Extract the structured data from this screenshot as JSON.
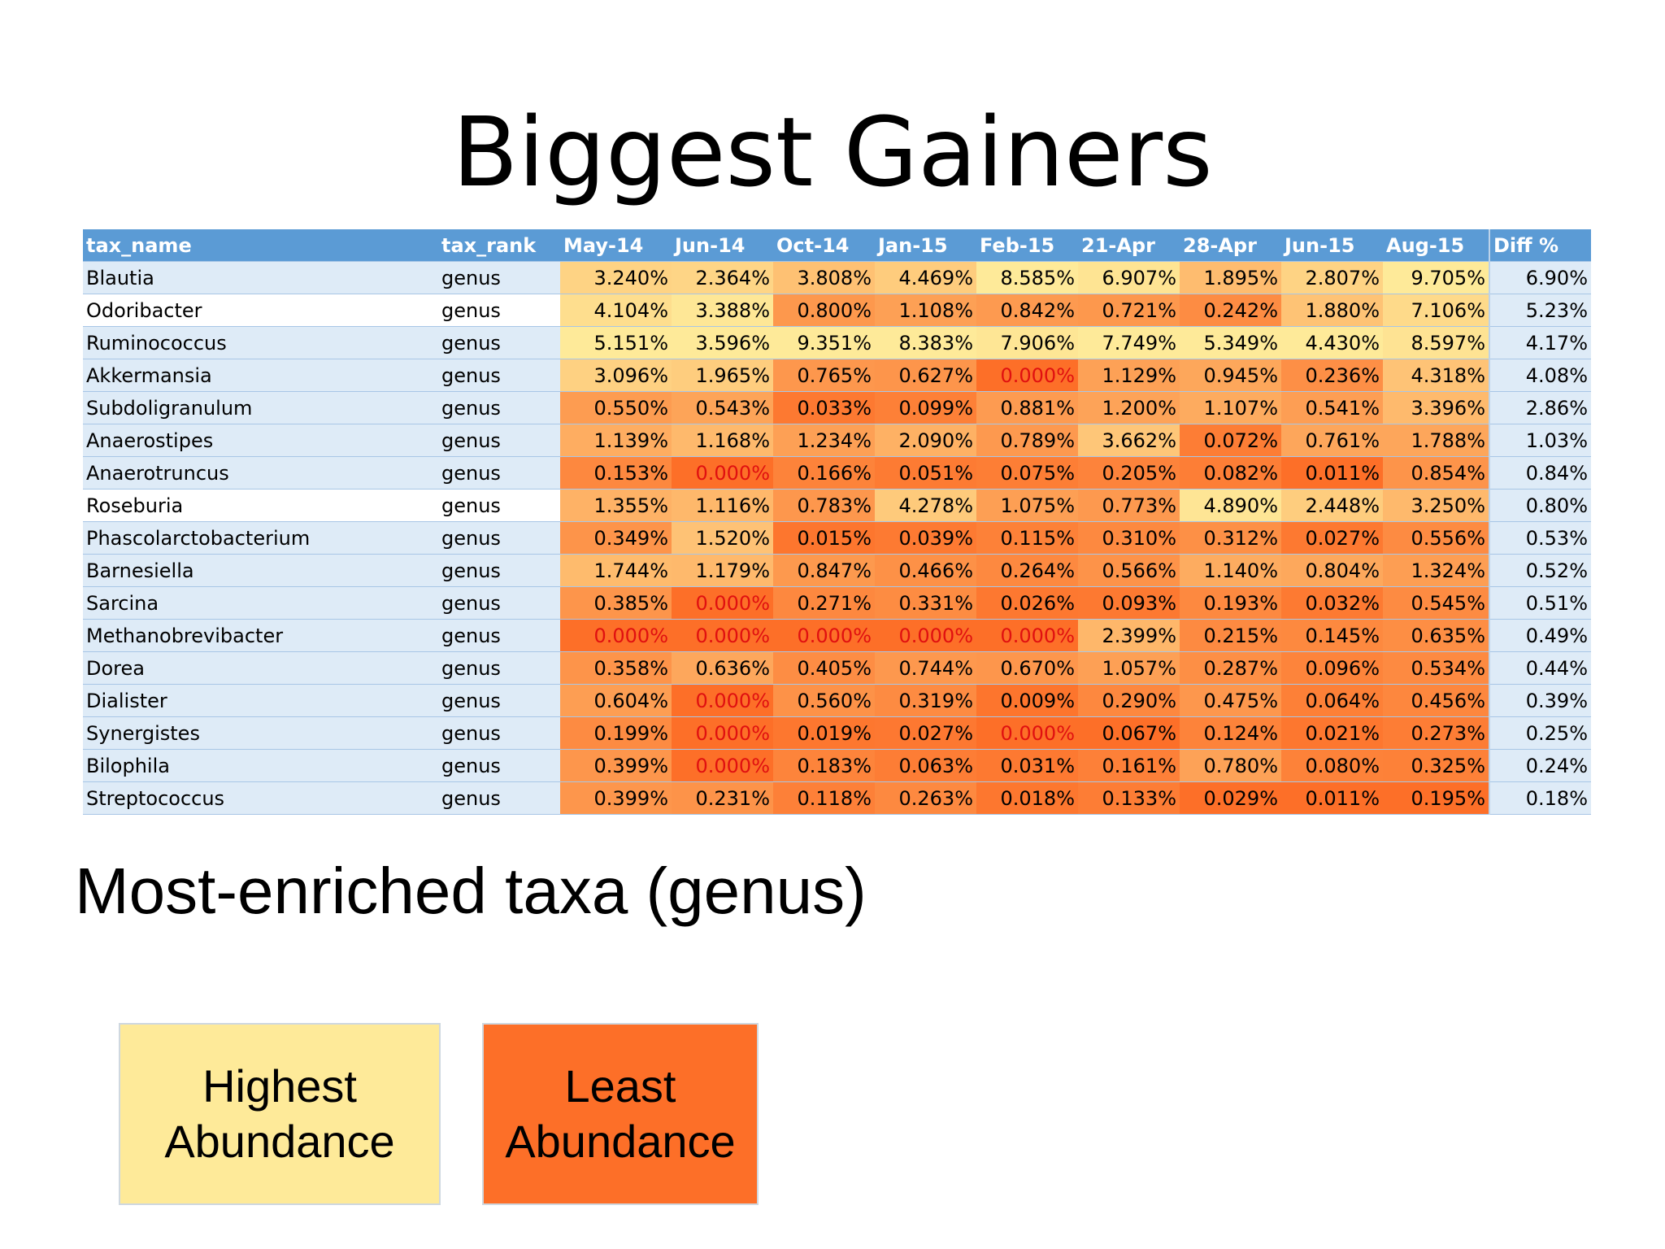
{
  "title": "Biggest Gainers",
  "subtitle": "Most-enriched taxa (genus)",
  "table": {
    "headers": [
      "tax_name",
      "tax_rank",
      "May-14",
      "Jun-14",
      "Oct-14",
      "Jan-15",
      "Feb-15",
      "21-Apr",
      "28-Apr",
      "Jun-15",
      "Aug-15",
      "Diff %"
    ],
    "rows": [
      {
        "name": "Blautia",
        "rank": "genus",
        "values": [
          "3.240%",
          "2.364%",
          "3.808%",
          "4.469%",
          "8.585%",
          "6.907%",
          "1.895%",
          "2.807%",
          "9.705%"
        ],
        "diff": "6.90%"
      },
      {
        "name": "Odoribacter",
        "rank": "genus",
        "values": [
          "4.104%",
          "3.388%",
          "0.800%",
          "1.108%",
          "0.842%",
          "0.721%",
          "0.242%",
          "1.880%",
          "7.106%"
        ],
        "diff": "5.23%"
      },
      {
        "name": "Ruminococcus",
        "rank": "genus",
        "values": [
          "5.151%",
          "3.596%",
          "9.351%",
          "8.383%",
          "7.906%",
          "7.749%",
          "5.349%",
          "4.430%",
          "8.597%"
        ],
        "diff": "4.17%"
      },
      {
        "name": "Akkermansia",
        "rank": "genus",
        "values": [
          "3.096%",
          "1.965%",
          "0.765%",
          "0.627%",
          "0.000%",
          "1.129%",
          "0.945%",
          "0.236%",
          "4.318%"
        ],
        "diff": "4.08%"
      },
      {
        "name": "Subdoligranulum",
        "rank": "genus",
        "values": [
          "0.550%",
          "0.543%",
          "0.033%",
          "0.099%",
          "0.881%",
          "1.200%",
          "1.107%",
          "0.541%",
          "3.396%"
        ],
        "diff": "2.86%"
      },
      {
        "name": "Anaerostipes",
        "rank": "genus",
        "values": [
          "1.139%",
          "1.168%",
          "1.234%",
          "2.090%",
          "0.789%",
          "3.662%",
          "0.072%",
          "0.761%",
          "1.788%"
        ],
        "diff": "1.03%"
      },
      {
        "name": "Anaerotruncus",
        "rank": "genus",
        "values": [
          "0.153%",
          "0.000%",
          "0.166%",
          "0.051%",
          "0.075%",
          "0.205%",
          "0.082%",
          "0.011%",
          "0.854%"
        ],
        "diff": "0.84%"
      },
      {
        "name": "Roseburia",
        "rank": "genus",
        "values": [
          "1.355%",
          "1.116%",
          "0.783%",
          "4.278%",
          "1.075%",
          "0.773%",
          "4.890%",
          "2.448%",
          "3.250%"
        ],
        "diff": "0.80%"
      },
      {
        "name": "Phascolarctobacterium",
        "rank": "genus",
        "values": [
          "0.349%",
          "1.520%",
          "0.015%",
          "0.039%",
          "0.115%",
          "0.310%",
          "0.312%",
          "0.027%",
          "0.556%"
        ],
        "diff": "0.53%"
      },
      {
        "name": "Barnesiella",
        "rank": "genus",
        "values": [
          "1.744%",
          "1.179%",
          "0.847%",
          "0.466%",
          "0.264%",
          "0.566%",
          "1.140%",
          "0.804%",
          "1.324%"
        ],
        "diff": "0.52%"
      },
      {
        "name": "Sarcina",
        "rank": "genus",
        "values": [
          "0.385%",
          "0.000%",
          "0.271%",
          "0.331%",
          "0.026%",
          "0.093%",
          "0.193%",
          "0.032%",
          "0.545%"
        ],
        "diff": "0.51%"
      },
      {
        "name": "Methanobrevibacter",
        "rank": "genus",
        "values": [
          "0.000%",
          "0.000%",
          "0.000%",
          "0.000%",
          "0.000%",
          "2.399%",
          "0.215%",
          "0.145%",
          "0.635%"
        ],
        "diff": "0.49%"
      },
      {
        "name": "Dorea",
        "rank": "genus",
        "values": [
          "0.358%",
          "0.636%",
          "0.405%",
          "0.744%",
          "0.670%",
          "1.057%",
          "0.287%",
          "0.096%",
          "0.534%"
        ],
        "diff": "0.44%"
      },
      {
        "name": "Dialister",
        "rank": "genus",
        "values": [
          "0.604%",
          "0.000%",
          "0.560%",
          "0.319%",
          "0.009%",
          "0.290%",
          "0.475%",
          "0.064%",
          "0.456%"
        ],
        "diff": "0.39%"
      },
      {
        "name": "Synergistes",
        "rank": "genus",
        "values": [
          "0.199%",
          "0.000%",
          "0.019%",
          "0.027%",
          "0.000%",
          "0.067%",
          "0.124%",
          "0.021%",
          "0.273%"
        ],
        "diff": "0.25%"
      },
      {
        "name": "Bilophila",
        "rank": "genus",
        "values": [
          "0.399%",
          "0.000%",
          "0.183%",
          "0.063%",
          "0.031%",
          "0.161%",
          "0.780%",
          "0.080%",
          "0.325%"
        ],
        "diff": "0.24%"
      },
      {
        "name": "Streptococcus",
        "rank": "genus",
        "values": [
          "0.399%",
          "0.231%",
          "0.118%",
          "0.263%",
          "0.018%",
          "0.133%",
          "0.029%",
          "0.011%",
          "0.195%"
        ],
        "diff": "0.18%"
      }
    ],
    "white_name_rows": [
      1,
      7
    ]
  },
  "colors": {
    "header": "#5b9bd5",
    "name_cell": "#deebf7",
    "highest": "#feea99",
    "least": "#fd6f28",
    "zero_text": "#e01010"
  },
  "legend": {
    "highest_label": "Highest Abundance",
    "least_label": "Least Abundance"
  }
}
